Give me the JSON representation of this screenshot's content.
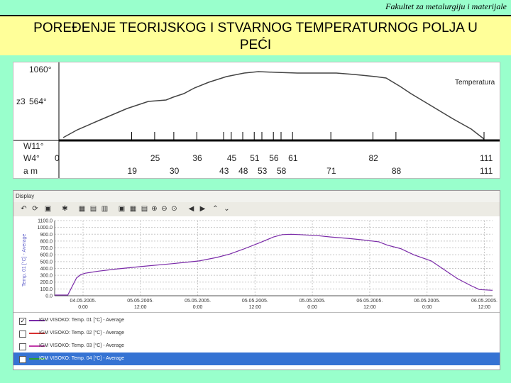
{
  "header": {
    "subtitle": "Fakultet za metalurgiju i materijale",
    "title_line1": "POREĐENJE TEORIJSKOG I STVARNOG TEMPERATURNOG POLJA U",
    "title_line2": "PEĆI"
  },
  "figure_top": {
    "y_top_label": "1060°",
    "z3_label": "z3",
    "mid_label": "564°",
    "curve_label": "Temperatura",
    "row_labels": [
      "W11°",
      "W4°",
      "a m"
    ],
    "positions_w11": [
      "0",
      "25",
      "36",
      "45",
      "51",
      "56",
      "61",
      "82",
      "111"
    ],
    "positions_am": [
      "19",
      "30",
      "43",
      "48",
      "53",
      "58",
      "71",
      "88",
      "111"
    ]
  },
  "figure_bottom": {
    "window_title": "Display",
    "y_axis_label": "Temp. 01 [°C] - Average",
    "y_ticks": [
      "1100.0",
      "1000.0",
      "900.0",
      "800.0",
      "700.0",
      "600.0",
      "500.0",
      "400.0",
      "300.0",
      "200.0",
      "100.0",
      "0.0"
    ],
    "x_dates": [
      "04.05.2005.",
      "05.05.2005.",
      "05.05.2005.",
      "05.05.2005.",
      "05.05.2005.",
      "06.05.2005.",
      "06.05.2005.",
      "06.05.2005."
    ],
    "x_times": [
      "0:00",
      "12:00",
      "0:00",
      "12:00",
      "0:00",
      "12:00",
      "0:00",
      "12:00"
    ],
    "legend": [
      {
        "checked": true,
        "label": "IGM VISOKO: Temp. 01 [°C] - Average",
        "color": "#7a2aa8"
      },
      {
        "checked": false,
        "label": "IGM VISOKO: Temp. 02 [°C] - Average",
        "color": "#d83030"
      },
      {
        "checked": false,
        "label": "IGM VISOKO: Temp. 03 [°C] - Average",
        "color": "#c03aa8"
      },
      {
        "checked": false,
        "label": "IGM VISOKO: Temp. 04 [°C] - Average",
        "color": "#2ca02c"
      }
    ]
  },
  "chart_data": {
    "type": "line",
    "ylabel": "Temp. 01 [°C] - Average",
    "ylim": [
      0,
      1100
    ],
    "grid": true,
    "series": [
      {
        "name": "IGM VISOKO: Temp. 01 [°C] - Average",
        "x": [
          0,
          0.03,
          0.05,
          0.06,
          0.07,
          0.1,
          0.14,
          0.2,
          0.27,
          0.33,
          0.37,
          0.4,
          0.43,
          0.47,
          0.5,
          0.52,
          0.54,
          0.56,
          0.6,
          0.63,
          0.67,
          0.7,
          0.74,
          0.76,
          0.79,
          0.82,
          0.86,
          0.89,
          0.92,
          0.95,
          0.97,
          1.0
        ],
        "values": [
          10,
          10,
          260,
          310,
          330,
          360,
          390,
          430,
          470,
          510,
          560,
          610,
          680,
          780,
          860,
          895,
          900,
          895,
          880,
          860,
          840,
          820,
          790,
          740,
          690,
          600,
          510,
          380,
          250,
          150,
          90,
          80
        ]
      }
    ]
  }
}
